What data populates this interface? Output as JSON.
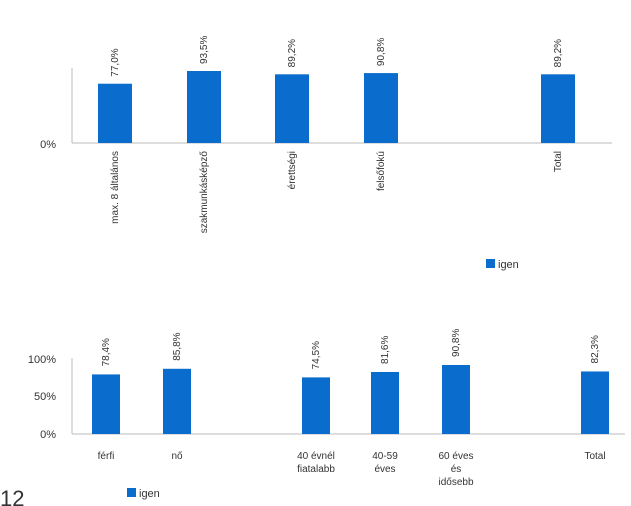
{
  "bar_color": "#0a6ccc",
  "page_number": "12",
  "chart_data": [
    {
      "type": "bar",
      "title": "",
      "xlabel": "",
      "ylabel": "",
      "categories": [
        "max. 8 általános",
        "szakmunkásképző",
        "érettségi",
        "felsőfokú",
        "Total"
      ],
      "series": [
        {
          "name": "igen",
          "values": [
            77.0,
            93.5,
            89.2,
            90.8,
            89.2
          ]
        }
      ],
      "data_labels": [
        "77,0%",
        "93,5%",
        "89,2%",
        "90,8%",
        "89,2%"
      ],
      "y_ticks": [
        "0%"
      ],
      "ylim": [
        0,
        100
      ],
      "legend": {
        "label": "igen",
        "position": "right"
      },
      "grid": false
    },
    {
      "type": "bar",
      "title": "",
      "xlabel": "",
      "ylabel": "",
      "categories": [
        "férfi",
        "nő",
        "40 évnél fiatalabb",
        "40-59 éves",
        "60 éves és idősebb",
        "Total"
      ],
      "category_lines": [
        [
          "férfi"
        ],
        [
          "nő"
        ],
        [
          "40 évnél",
          "fiatalabb"
        ],
        [
          "40-59",
          "éves"
        ],
        [
          "60 éves",
          "és",
          "idősebb"
        ],
        [
          "Total"
        ]
      ],
      "series": [
        {
          "name": "igen",
          "values": [
            78.4,
            85.8,
            74.5,
            81.6,
            90.8,
            82.3
          ]
        }
      ],
      "data_labels": [
        "78,4%",
        "85,8%",
        "74,5%",
        "81,6%",
        "90,8%",
        "82,3%"
      ],
      "y_ticks": [
        "100%",
        "50%",
        "0%"
      ],
      "ylim": [
        0,
        100
      ],
      "legend": {
        "label": "igen",
        "position": "bottom-left"
      },
      "grid": false
    }
  ]
}
